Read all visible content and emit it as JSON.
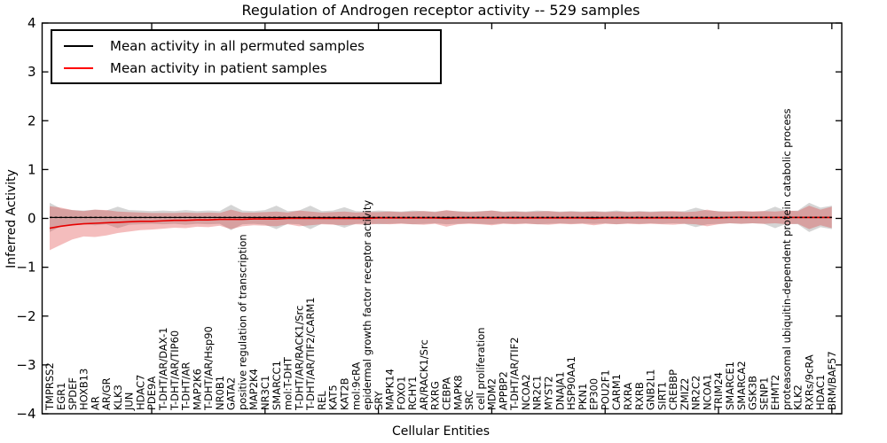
{
  "figure": {
    "title": "Regulation of Androgen receptor activity -- 529 samples",
    "xlabel": "Cellular Entities",
    "ylabel": "Inferred Activity"
  },
  "legend": {
    "entries": [
      {
        "label": "Mean activity in all permuted samples",
        "color": "#000000"
      },
      {
        "label": "Mean activity in patient samples",
        "color": "#ff0000"
      }
    ]
  },
  "chart_data": {
    "type": "line",
    "title": "Regulation of Androgen receptor activity -- 529 samples",
    "xlabel": "Cellular Entities",
    "ylabel": "Inferred Activity",
    "ylim": [
      -4,
      4
    ],
    "yticks": [
      4,
      3,
      2,
      1,
      0,
      -1,
      -2,
      -3,
      -4
    ],
    "grid": false,
    "legend_position": "upper left",
    "categories": [
      "TMPRSS2",
      "EGR1",
      "SPDEF",
      "HOXB13",
      "AR",
      "AR/GR",
      "KLK3",
      "JUN",
      "HDAC7",
      "PDE9A",
      "T-DHT/AR/DAX-1",
      "T-DHT/AR/TIP60",
      "T-DHT/AR",
      "MAP2K6",
      "T-DHT/AR/Hsp90",
      "NR0B1",
      "GATA2",
      "positive regulation of transcription",
      "MAP2K4",
      "NR3C1",
      "SMARCC1",
      "mol:T-DHT",
      "T-DHT/AR/RACK1/Src",
      "T-DHT/AR/TIF2/CARM1",
      "REL",
      "KAT5",
      "KAT2B",
      "mol:9cRA",
      "epidermal growth factor receptor activity",
      "SRY",
      "MAPK14",
      "FOXO1",
      "RCHY1",
      "AR/RACK1/Src",
      "RXRG",
      "CEBPA",
      "MAPK8",
      "SRC",
      "cell proliferation",
      "MDM2",
      "APPBP2",
      "T-DHT/AR/TIF2",
      "NCOA2",
      "NR2C1",
      "MYST2",
      "DNAJA1",
      "HSP90AA1",
      "PKN1",
      "EP300",
      "POU2F1",
      "CARM1",
      "RXRA",
      "RXRB",
      "GNB2L1",
      "SIRT1",
      "CREBBP",
      "ZMIZ2",
      "NR2C2",
      "NCOA1",
      "TRIM24",
      "SMARCE1",
      "SMARCA2",
      "GSK3B",
      "SENP1",
      "EHMT2",
      "proteasomal ubiquitin-dependent protein catabolic process",
      "KLK2",
      "RXRs/9cRA",
      "HDAC1",
      "BRM/BAF57"
    ],
    "series": [
      {
        "name": "Mean activity in all permuted samples",
        "color": "#000000",
        "band_color": "#888888",
        "values": [
          0.02,
          0.02,
          0.02,
          0.02,
          0.02,
          0.02,
          0.02,
          0.02,
          0.02,
          0.02,
          0.02,
          0.02,
          0.02,
          0.02,
          0.02,
          0.02,
          0.02,
          0.02,
          0.02,
          0.02,
          0.02,
          0.02,
          0.02,
          0.02,
          0.02,
          0.02,
          0.02,
          0.02,
          0.02,
          0.02,
          0.02,
          0.02,
          0.02,
          0.02,
          0.02,
          0.02,
          0.02,
          0.02,
          0.02,
          0.02,
          0.02,
          0.02,
          0.02,
          0.02,
          0.02,
          0.02,
          0.02,
          0.02,
          0.02,
          0.02,
          0.02,
          0.02,
          0.02,
          0.02,
          0.02,
          0.02,
          0.02,
          0.02,
          0.02,
          0.02,
          0.02,
          0.02,
          0.02,
          0.02,
          0.02,
          0.02,
          0.02,
          0.02,
          0.02,
          0.02
        ],
        "band": [
          0.3,
          0.18,
          0.15,
          0.14,
          0.16,
          0.14,
          0.22,
          0.15,
          0.14,
          0.13,
          0.14,
          0.13,
          0.15,
          0.13,
          0.14,
          0.13,
          0.26,
          0.14,
          0.13,
          0.15,
          0.24,
          0.13,
          0.14,
          0.24,
          0.13,
          0.14,
          0.21,
          0.13,
          0.12,
          0.14,
          0.13,
          0.12,
          0.14,
          0.13,
          0.12,
          0.14,
          0.13,
          0.12,
          0.13,
          0.14,
          0.12,
          0.13,
          0.12,
          0.14,
          0.13,
          0.12,
          0.13,
          0.12,
          0.13,
          0.12,
          0.14,
          0.12,
          0.13,
          0.12,
          0.13,
          0.12,
          0.13,
          0.2,
          0.14,
          0.13,
          0.12,
          0.13,
          0.12,
          0.13,
          0.22,
          0.13,
          0.14,
          0.3,
          0.2,
          0.24
        ]
      },
      {
        "name": "Mean activity in patient samples",
        "color": "#e60000",
        "band_color": "#dd3333",
        "values": [
          -0.2,
          -0.16,
          -0.13,
          -0.11,
          -0.1,
          -0.09,
          -0.08,
          -0.07,
          -0.06,
          -0.06,
          -0.05,
          -0.04,
          -0.04,
          -0.03,
          -0.03,
          -0.02,
          -0.02,
          -0.02,
          -0.01,
          -0.01,
          -0.01,
          0.0,
          0.0,
          0.0,
          0.0,
          0.0,
          0.0,
          0.0,
          0.0,
          0.01,
          0.01,
          0.01,
          0.01,
          0.01,
          0.01,
          0.0,
          0.01,
          0.01,
          0.01,
          0.01,
          0.01,
          0.01,
          0.01,
          0.01,
          0.01,
          0.01,
          0.01,
          0.01,
          0.0,
          0.01,
          0.01,
          0.01,
          0.01,
          0.01,
          0.01,
          0.01,
          0.01,
          0.01,
          0.01,
          0.01,
          0.02,
          0.02,
          0.02,
          0.02,
          0.02,
          0.02,
          0.02,
          0.02,
          0.02,
          0.02
        ],
        "band": [
          0.45,
          0.38,
          0.3,
          0.26,
          0.28,
          0.26,
          0.22,
          0.2,
          0.18,
          0.17,
          0.16,
          0.15,
          0.16,
          0.14,
          0.15,
          0.13,
          0.2,
          0.14,
          0.13,
          0.14,
          0.15,
          0.12,
          0.16,
          0.14,
          0.12,
          0.13,
          0.14,
          0.12,
          0.13,
          0.12,
          0.13,
          0.12,
          0.13,
          0.14,
          0.12,
          0.17,
          0.13,
          0.12,
          0.13,
          0.15,
          0.12,
          0.13,
          0.12,
          0.13,
          0.14,
          0.12,
          0.13,
          0.12,
          0.14,
          0.12,
          0.13,
          0.12,
          0.13,
          0.12,
          0.13,
          0.14,
          0.12,
          0.13,
          0.17,
          0.13,
          0.12,
          0.13,
          0.12,
          0.13,
          0.12,
          0.14,
          0.13,
          0.24,
          0.16,
          0.22
        ]
      }
    ]
  }
}
